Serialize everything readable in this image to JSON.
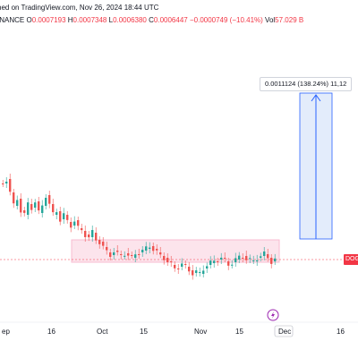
{
  "header": {
    "published": "hed on TradingView.com, Nov 26, 2024 18:44 UTC",
    "exchange": "INANCE",
    "open_label": "O",
    "open": "0.0007193",
    "high_label": "H",
    "high": "0.0007348",
    "low_label": "L",
    "low": "0.0006380",
    "close_label": "C",
    "close": "0.0006447",
    "change": "−0.0000749 (−10.41%)",
    "vol_label": "Vol",
    "vol": "57.029 B"
  },
  "measure": {
    "label": "0.0011124 (138.24%) 11,12"
  },
  "price_tag": {
    "label": "DOG"
  },
  "x_axis": {
    "labels": [
      "ep",
      "16",
      "Oct",
      "15",
      "Nov",
      "15",
      "Dec",
      "16"
    ],
    "highlight_label": "Dec"
  },
  "colors": {
    "up": "#26a69a",
    "down": "#ef5350",
    "range_fill": "#f8bbd0",
    "measure_fill": "#e3ecfb",
    "measure_stroke": "#2962ff"
  },
  "chart_data": {
    "type": "candlestick",
    "x_labels": [
      "ep",
      "16",
      "Oct",
      "15",
      "Nov",
      "15",
      "Dec",
      "16"
    ],
    "series": [
      {
        "values": [
          1,
          1,
          1,
          1,
          1,
          1,
          1,
          1,
          1,
          1,
          1,
          1,
          1,
          1,
          1,
          1,
          1,
          1,
          1,
          1,
          1,
          1,
          1,
          1,
          1,
          1,
          1,
          1,
          1,
          1,
          1,
          1,
          1,
          1,
          1,
          1,
          1,
          1,
          1,
          1,
          1,
          1,
          1,
          1,
          1,
          1,
          1,
          1,
          1,
          1,
          1,
          1,
          1,
          1,
          1,
          1,
          1,
          1,
          1,
          1,
          1,
          1,
          1,
          1,
          1,
          1,
          1,
          1,
          1,
          1,
          1,
          1,
          1,
          1,
          1,
          1,
          1
        ]
      }
    ]
  }
}
